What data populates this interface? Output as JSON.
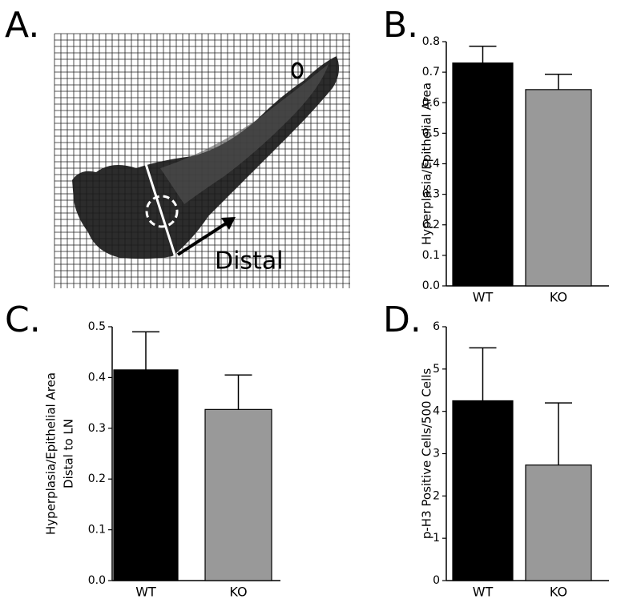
{
  "image": {
    "label": "A.",
    "annotation": "Distal"
  },
  "chart_data": [
    {
      "type": "bar",
      "panel_label": "B.",
      "ylabel": [
        "Hyperplasia/Epithelial Area"
      ],
      "categories": [
        "WT",
        "KO"
      ],
      "values": [
        0.73,
        0.643
      ],
      "errors": [
        0.055,
        0.05
      ],
      "colors": [
        "#000000",
        "#999999"
      ],
      "ylim": [
        0,
        0.8
      ],
      "yticks": [
        {
          "value": 0,
          "label": "0.0"
        },
        0.1,
        0.2,
        0.3,
        0.4,
        0.5,
        0.6,
        0.7,
        0.8
      ]
    },
    {
      "type": "bar",
      "panel_label": "C.",
      "ylabel": [
        "Hyperplasia/Epithelial Area",
        "Distal to LN"
      ],
      "categories": [
        "WT",
        "KO"
      ],
      "values": [
        0.415,
        0.337
      ],
      "errors": [
        0.075,
        0.068
      ],
      "colors": [
        "#000000",
        "#999999"
      ],
      "ylim": [
        0,
        0.5
      ],
      "yticks": [
        {
          "value": 0,
          "label": "0.0"
        },
        0.1,
        0.2,
        0.3,
        0.4,
        0.5
      ]
    },
    {
      "type": "bar",
      "panel_label": "D.",
      "ylabel": [
        "p-H3 Positive Cells/500 Cells"
      ],
      "categories": [
        "WT",
        "KO"
      ],
      "values": [
        4.25,
        2.73
      ],
      "errors": [
        1.25,
        1.47
      ],
      "colors": [
        "#000000",
        "#999999"
      ],
      "ylim": [
        0,
        6
      ],
      "yticks": [
        0,
        1,
        2,
        3,
        4,
        5,
        6
      ]
    }
  ]
}
